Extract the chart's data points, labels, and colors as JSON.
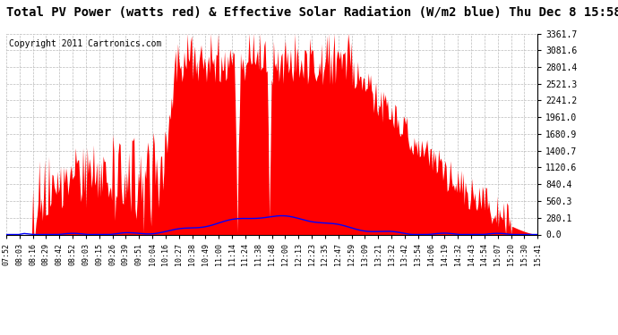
{
  "title": "Total PV Power (watts red) & Effective Solar Radiation (W/m2 blue) Thu Dec 8 15:58",
  "copyright": "Copyright 2011 Cartronics.com",
  "yticks": [
    0.0,
    280.1,
    560.3,
    840.4,
    1120.6,
    1400.7,
    1680.9,
    1961.0,
    2241.2,
    2521.3,
    2801.4,
    3081.6,
    3361.7
  ],
  "ytick_labels": [
    "0.0",
    "280.1",
    "560.3",
    "840.4",
    "1120.6",
    "1400.7",
    "1680.9",
    "1961.0",
    "2241.2",
    "2521.3",
    "2801.4",
    "3081.6",
    "3361.7"
  ],
  "xlabels": [
    "07:52",
    "08:03",
    "08:16",
    "08:29",
    "08:42",
    "08:52",
    "09:03",
    "09:15",
    "09:26",
    "09:39",
    "09:51",
    "10:04",
    "10:16",
    "10:27",
    "10:38",
    "10:49",
    "11:00",
    "11:14",
    "11:24",
    "11:38",
    "11:48",
    "12:00",
    "12:13",
    "12:23",
    "12:35",
    "12:47",
    "12:59",
    "13:09",
    "13:21",
    "13:32",
    "13:42",
    "13:54",
    "14:06",
    "14:19",
    "14:32",
    "14:43",
    "14:54",
    "15:07",
    "15:20",
    "15:30",
    "15:41"
  ],
  "background_color": "#ffffff",
  "red_color": "#ff0000",
  "blue_color": "#0000ff",
  "grid_color": "#bbbbbb",
  "title_fontsize": 10,
  "copyright_fontsize": 7,
  "ymax": 3361.7,
  "ymin": 0.0
}
